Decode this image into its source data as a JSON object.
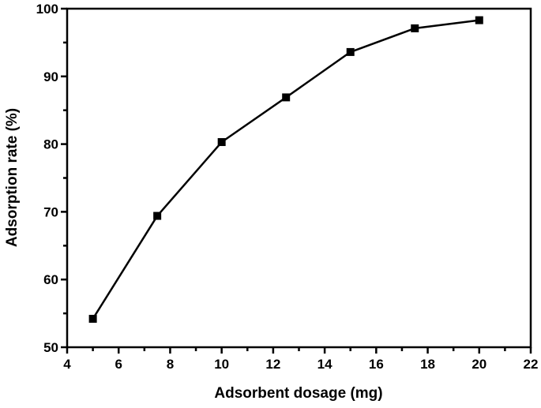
{
  "chart_data": {
    "type": "line",
    "title": "",
    "xlabel": "Adsorbent dosage (mg)",
    "ylabel": "Adsorption rate (%)",
    "xlim": [
      4,
      22
    ],
    "ylim": [
      50,
      100
    ],
    "xticks": [
      4,
      6,
      8,
      10,
      12,
      14,
      16,
      18,
      20,
      22
    ],
    "yticks": [
      50,
      60,
      70,
      80,
      90,
      100
    ],
    "grid": false,
    "legend": null,
    "series": [
      {
        "name": "Adsorption rate",
        "marker": "square",
        "color": "#000000",
        "x": [
          5,
          7.5,
          10,
          12.5,
          15,
          17.5,
          20
        ],
        "values": [
          54.2,
          69.4,
          80.3,
          86.9,
          93.6,
          97.1,
          98.3
        ]
      }
    ]
  }
}
